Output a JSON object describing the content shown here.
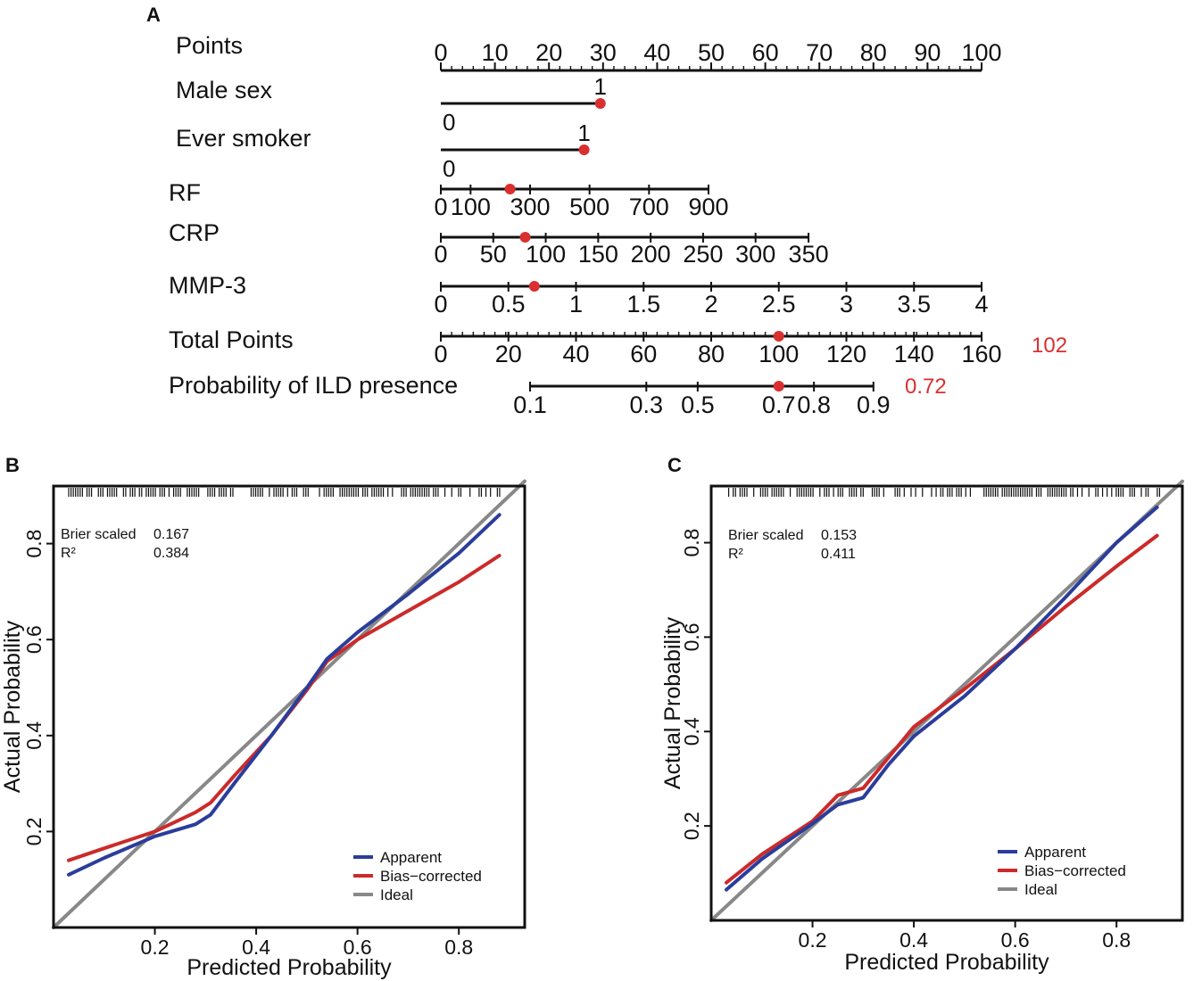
{
  "colors": {
    "apparent": "#2b3d9b",
    "bias_corrected": "#cc2a2a",
    "ideal": "#888888",
    "marker": "#d92f2f",
    "line": "#111111"
  },
  "panel_a": {
    "label": "A",
    "rows": [
      {
        "name": "Points",
        "label": "Points",
        "points": [
          0,
          100
        ],
        "ticks": [
          {
            "v": 0,
            "p": 0,
            "label": "0"
          },
          {
            "v": 10,
            "p": 10,
            "label": "10"
          },
          {
            "v": 20,
            "p": 20,
            "label": "20"
          },
          {
            "v": 30,
            "p": 30,
            "label": "30"
          },
          {
            "v": 40,
            "p": 40,
            "label": "40"
          },
          {
            "v": 50,
            "p": 50,
            "label": "50"
          },
          {
            "v": 60,
            "p": 60,
            "label": "60"
          },
          {
            "v": 70,
            "p": 70,
            "label": "70"
          },
          {
            "v": 80,
            "p": 80,
            "label": "80"
          },
          {
            "v": 90,
            "p": 90,
            "label": "90"
          },
          {
            "v": 100,
            "p": 100,
            "label": "100"
          }
        ],
        "minor": true,
        "marker": null
      },
      {
        "name": "Male sex",
        "label": "Male sex",
        "points": [
          0,
          29.5
        ],
        "ticks": [
          {
            "v": 0,
            "p": 0,
            "label": "0",
            "pos": "below"
          },
          {
            "v": 1,
            "p": 29.5,
            "label": "1",
            "pos": "above"
          }
        ],
        "marker": 29.5
      },
      {
        "name": "Ever smoker",
        "label": "Ever smoker",
        "points": [
          0,
          26.5
        ],
        "ticks": [
          {
            "v": 0,
            "p": 0,
            "label": "0",
            "pos": "below"
          },
          {
            "v": 1,
            "p": 26.5,
            "label": "1",
            "pos": "above"
          }
        ],
        "marker": 26.5
      },
      {
        "name": "RF",
        "label": "RF",
        "points": [
          0,
          49.5
        ],
        "ticks": [
          {
            "v": 0,
            "p": 0,
            "label": "0"
          },
          {
            "v": 100,
            "p": 5.5,
            "label": "100"
          },
          {
            "v": 300,
            "p": 16.5,
            "label": "300"
          },
          {
            "v": 500,
            "p": 27.5,
            "label": "500"
          },
          {
            "v": 700,
            "p": 38.5,
            "label": "700"
          },
          {
            "v": 900,
            "p": 49.5,
            "label": "900"
          }
        ],
        "marker": 12.8
      },
      {
        "name": "CRP",
        "label": "CRP",
        "points": [
          0,
          68
        ],
        "ticks": [
          {
            "v": 0,
            "p": 0,
            "label": "0"
          },
          {
            "v": 50,
            "p": 9.7,
            "label": "50"
          },
          {
            "v": 100,
            "p": 19.4,
            "label": "100"
          },
          {
            "v": 150,
            "p": 29.1,
            "label": "150"
          },
          {
            "v": 200,
            "p": 38.8,
            "label": "200"
          },
          {
            "v": 250,
            "p": 48.5,
            "label": "250"
          },
          {
            "v": 300,
            "p": 58.2,
            "label": "300"
          },
          {
            "v": 350,
            "p": 68,
            "label": "350"
          }
        ],
        "marker": 15.6
      },
      {
        "name": "MMP-3",
        "label": "MMP-3",
        "points": [
          0,
          100
        ],
        "ticks": [
          {
            "v": 0,
            "p": 0,
            "label": "0"
          },
          {
            "v": 0.5,
            "p": 12.5,
            "label": "0.5"
          },
          {
            "v": 1,
            "p": 25,
            "label": "1"
          },
          {
            "v": 1.5,
            "p": 37.5,
            "label": "1.5"
          },
          {
            "v": 2,
            "p": 50,
            "label": "2"
          },
          {
            "v": 2.5,
            "p": 62.5,
            "label": "2.5"
          },
          {
            "v": 3,
            "p": 75,
            "label": "3"
          },
          {
            "v": 3.5,
            "p": 87.5,
            "label": "3.5"
          },
          {
            "v": 4,
            "p": 100,
            "label": "4"
          }
        ],
        "marker": 17.3
      },
      {
        "name": "Total Points",
        "label": "Total Points",
        "points": [
          0,
          100
        ],
        "ticks": [
          {
            "v": 0,
            "p": 0,
            "label": "0"
          },
          {
            "v": 20,
            "p": 12.5,
            "label": "20"
          },
          {
            "v": 40,
            "p": 25,
            "label": "40"
          },
          {
            "v": 60,
            "p": 37.5,
            "label": "60"
          },
          {
            "v": 80,
            "p": 50,
            "label": "80"
          },
          {
            "v": 100,
            "p": 62.5,
            "label": "100"
          },
          {
            "v": 120,
            "p": 75,
            "label": "120"
          },
          {
            "v": 140,
            "p": 87.5,
            "label": "140"
          },
          {
            "v": 160,
            "p": 100,
            "label": "160"
          }
        ],
        "minor": true,
        "marker": 62.5,
        "result": "102"
      },
      {
        "name": "Probability of ILD presence",
        "label": "Probability of ILD presence",
        "points": [
          16.5,
          80
        ],
        "ticks": [
          {
            "v": 0.1,
            "p": 16.5,
            "label": "0.1"
          },
          {
            "v": 0.3,
            "p": 38,
            "label": "0.3"
          },
          {
            "v": 0.5,
            "p": 47.5,
            "label": "0.5"
          },
          {
            "v": 0.7,
            "p": 62.5,
            "label": "0.7"
          },
          {
            "v": 0.8,
            "p": 69,
            "label": "0.8"
          },
          {
            "v": 0.9,
            "p": 80,
            "label": "0.9"
          }
        ],
        "marker": 62.5,
        "result": "0.72"
      }
    ]
  },
  "chart_data": [
    {
      "type": "line",
      "panel": "B",
      "title": "",
      "xlabel": "Predicted Probability",
      "ylabel": "Actual Probability",
      "xlim": [
        0.0,
        0.93
      ],
      "ylim": [
        0.0,
        0.92
      ],
      "xticks": [
        0.2,
        0.4,
        0.6,
        0.8
      ],
      "yticks": [
        0.2,
        0.4,
        0.6,
        0.8
      ],
      "stats": [
        {
          "label": "Brier scaled",
          "value": "0.167"
        },
        {
          "label": "R²",
          "value": "0.384"
        }
      ],
      "legend": [
        "Apparent",
        "Bias−corrected",
        "Ideal"
      ],
      "legend_position": "bottom-right",
      "series": [
        {
          "name": "Apparent",
          "x": [
            0.03,
            0.1,
            0.2,
            0.28,
            0.31,
            0.36,
            0.43,
            0.5,
            0.54,
            0.6,
            0.7,
            0.8,
            0.88
          ],
          "y": [
            0.11,
            0.145,
            0.19,
            0.215,
            0.235,
            0.305,
            0.4,
            0.5,
            0.56,
            0.615,
            0.695,
            0.78,
            0.86
          ]
        },
        {
          "name": "Bias-corrected",
          "x": [
            0.03,
            0.1,
            0.2,
            0.28,
            0.31,
            0.36,
            0.43,
            0.5,
            0.54,
            0.6,
            0.7,
            0.8,
            0.88
          ],
          "y": [
            0.14,
            0.165,
            0.2,
            0.24,
            0.26,
            0.32,
            0.4,
            0.495,
            0.555,
            0.6,
            0.66,
            0.72,
            0.775
          ]
        },
        {
          "name": "Ideal",
          "x": [
            0.0,
            0.93
          ],
          "y": [
            0.0,
            0.93
          ]
        }
      ]
    },
    {
      "type": "line",
      "panel": "C",
      "title": "",
      "xlabel": "Predicted Probability",
      "ylabel": "Actual Probability",
      "xlim": [
        0.0,
        0.93
      ],
      "ylim": [
        0.0,
        0.92
      ],
      "xticks": [
        0.2,
        0.4,
        0.6,
        0.8
      ],
      "yticks": [
        0.2,
        0.4,
        0.6,
        0.8
      ],
      "stats": [
        {
          "label": "Brier scaled",
          "value": "0.153"
        },
        {
          "label": "R²",
          "value": "0.411"
        }
      ],
      "legend": [
        "Apparent",
        "Bias−corrected",
        "Ideal"
      ],
      "legend_position": "bottom-right",
      "series": [
        {
          "name": "Apparent",
          "x": [
            0.03,
            0.1,
            0.2,
            0.25,
            0.3,
            0.35,
            0.4,
            0.5,
            0.6,
            0.7,
            0.8,
            0.88
          ],
          "y": [
            0.065,
            0.13,
            0.205,
            0.245,
            0.26,
            0.33,
            0.39,
            0.475,
            0.575,
            0.685,
            0.8,
            0.875
          ]
        },
        {
          "name": "Bias-corrected",
          "x": [
            0.03,
            0.1,
            0.2,
            0.25,
            0.3,
            0.35,
            0.4,
            0.5,
            0.6,
            0.7,
            0.8,
            0.88
          ],
          "y": [
            0.08,
            0.14,
            0.21,
            0.265,
            0.28,
            0.345,
            0.41,
            0.49,
            0.575,
            0.665,
            0.75,
            0.815
          ]
        },
        {
          "name": "Ideal",
          "x": [
            0.0,
            0.93
          ],
          "y": [
            0.0,
            0.93
          ]
        }
      ]
    }
  ]
}
